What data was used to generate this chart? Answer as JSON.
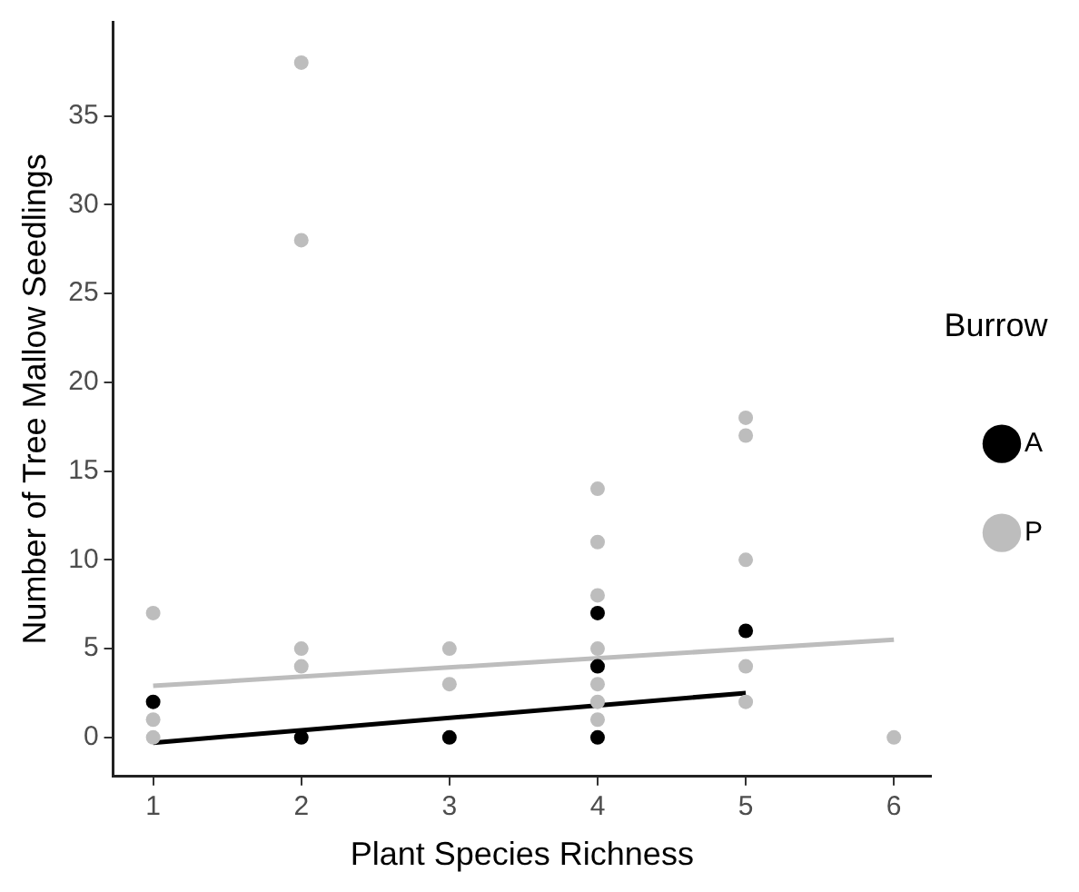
{
  "chart_data": {
    "type": "scatter",
    "xlabel": "Plant Species Richness",
    "ylabel": "Number of Tree Mallow Seedlings",
    "legend_title": "Burrow",
    "legend": "right",
    "grid": false,
    "marker": "circle",
    "xlim": [
      0.73,
      6.25
    ],
    "xticks": [
      1,
      2,
      3,
      4,
      5,
      6
    ],
    "ylim": [
      -2.2,
      40.3
    ],
    "yticks": [
      0,
      5,
      10,
      15,
      20,
      25,
      30,
      35
    ],
    "series": [
      {
        "name": "A",
        "color": "#000000",
        "x": [
          1,
          2,
          3,
          4,
          4,
          4,
          5
        ],
        "values": [
          2,
          0,
          0,
          7,
          4,
          0,
          6
        ]
      },
      {
        "name": "P",
        "color": "#bdbdbd",
        "x": [
          1,
          1,
          1,
          2,
          2,
          2,
          2,
          3,
          3,
          4,
          4,
          4,
          4,
          4,
          4,
          4,
          5,
          5,
          5,
          5,
          5,
          6
        ],
        "values": [
          7,
          1,
          0,
          38,
          28,
          5,
          4,
          5,
          3,
          14,
          11,
          8,
          5,
          3,
          2,
          1,
          18,
          17,
          10,
          4,
          2,
          0
        ]
      },
      {
        "type": "line",
        "marker": "none",
        "color": "#000000",
        "x": [
          1,
          5
        ],
        "values": [
          -0.3,
          2.5
        ]
      },
      {
        "type": "line",
        "marker": "none",
        "color": "#bdbdbd",
        "x": [
          1,
          6
        ],
        "values": [
          2.9,
          5.5
        ]
      }
    ]
  }
}
